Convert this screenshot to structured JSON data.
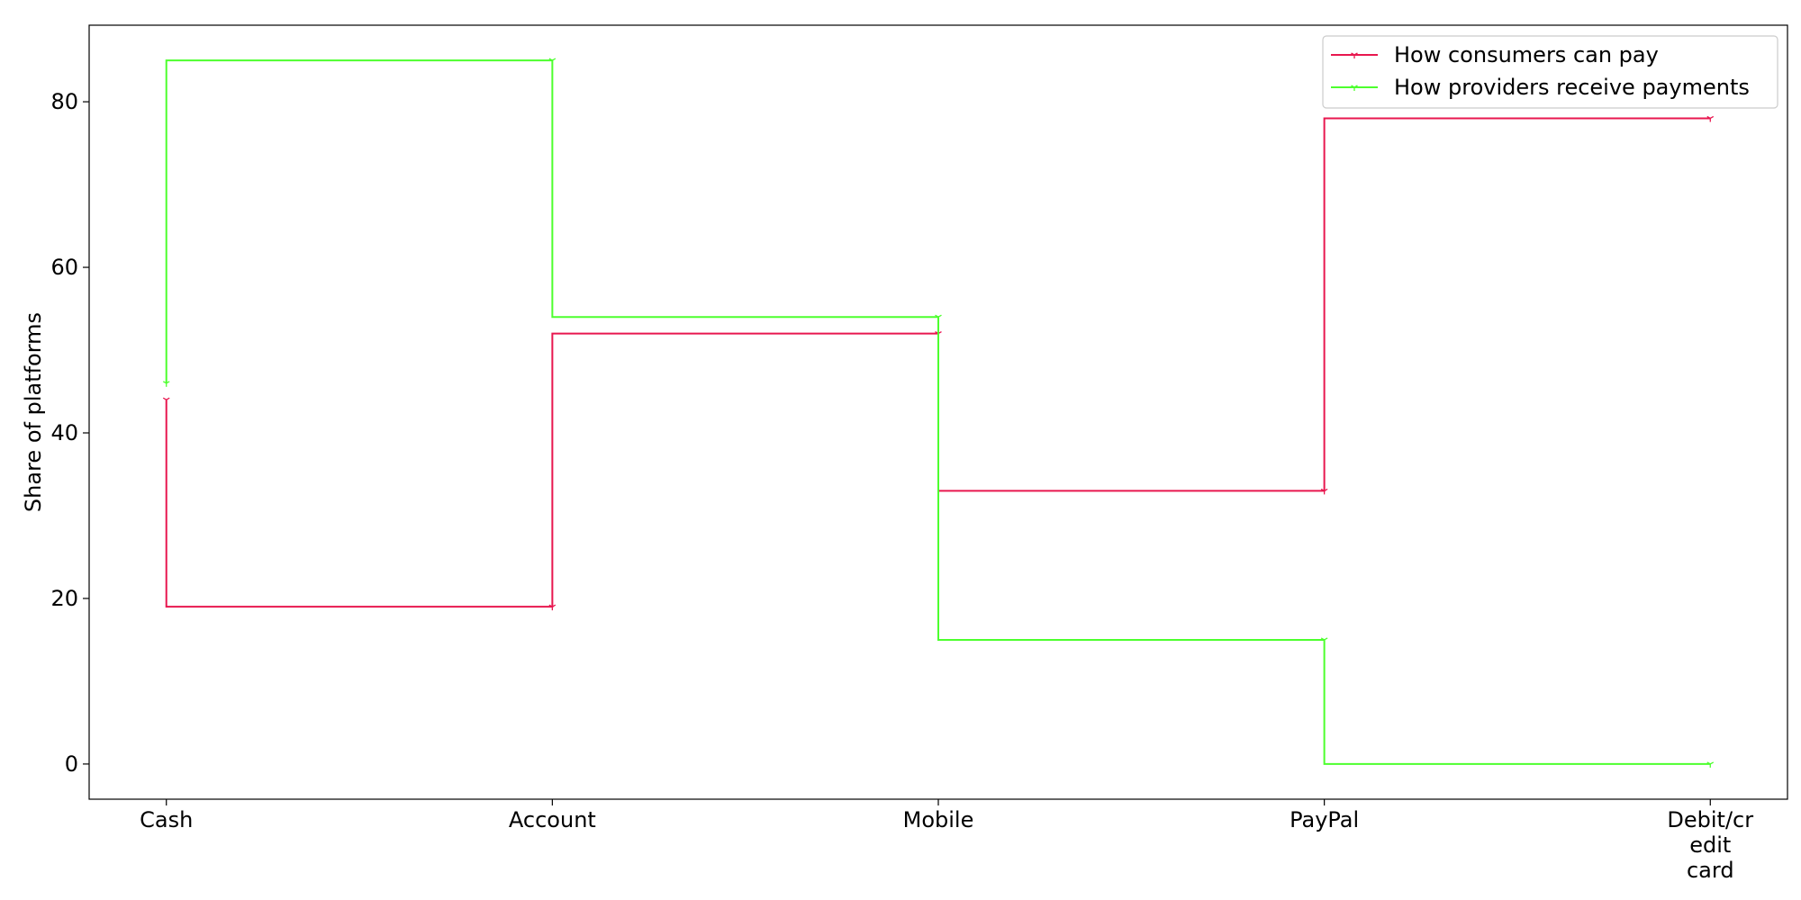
{
  "chart_data": {
    "type": "line",
    "step": "pre",
    "title": "",
    "xlabel": "",
    "ylabel": "Share of platforms",
    "categories": [
      "Cash",
      "Account",
      "Mobile",
      "PayPal",
      "Debit/credit card"
    ],
    "category_lines": [
      [
        "Cash"
      ],
      [
        "Account"
      ],
      [
        "Mobile"
      ],
      [
        "PayPal"
      ],
      [
        "Debit/cr",
        "edit",
        "card"
      ]
    ],
    "ylim": [
      -4.25,
      89.25
    ],
    "yticks": [
      0,
      20,
      40,
      60,
      80
    ],
    "grid": false,
    "legend_position": "top-right",
    "series": [
      {
        "name": "How consumers can pay",
        "color": "#e8174f",
        "marker": "tri",
        "values": [
          44,
          19,
          52,
          33,
          78
        ]
      },
      {
        "name": "How providers receive payments",
        "color": "#4dff2e",
        "marker": "tri",
        "values": [
          46,
          85,
          54,
          15,
          0
        ]
      }
    ]
  }
}
